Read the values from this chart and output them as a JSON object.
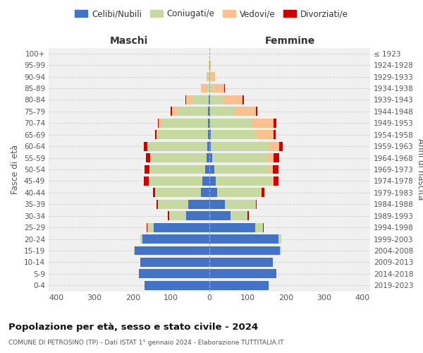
{
  "age_groups": [
    "0-4",
    "5-9",
    "10-14",
    "15-19",
    "20-24",
    "25-29",
    "30-34",
    "35-39",
    "40-44",
    "45-49",
    "50-54",
    "55-59",
    "60-64",
    "65-69",
    "70-74",
    "75-79",
    "80-84",
    "85-89",
    "90-94",
    "95-99",
    "100+"
  ],
  "birth_years": [
    "2019-2023",
    "2014-2018",
    "2009-2013",
    "2004-2008",
    "1999-2003",
    "1994-1998",
    "1989-1993",
    "1984-1988",
    "1979-1983",
    "1974-1978",
    "1969-1973",
    "1964-1968",
    "1959-1963",
    "1954-1958",
    "1949-1953",
    "1944-1948",
    "1939-1943",
    "1934-1938",
    "1929-1933",
    "1924-1928",
    "≤ 1923"
  ],
  "maschi": {
    "celibi": [
      170,
      185,
      180,
      195,
      175,
      145,
      60,
      55,
      22,
      18,
      11,
      8,
      5,
      4,
      3,
      3,
      2,
      0,
      0,
      0,
      0
    ],
    "coniugati": [
      0,
      0,
      0,
      2,
      6,
      18,
      45,
      80,
      120,
      140,
      145,
      145,
      155,
      130,
      120,
      80,
      40,
      8,
      3,
      1,
      0
    ],
    "vedovi": [
      0,
      0,
      0,
      0,
      0,
      0,
      0,
      0,
      0,
      1,
      1,
      2,
      3,
      5,
      10,
      15,
      18,
      15,
      5,
      1,
      0
    ],
    "divorziati": [
      0,
      0,
      0,
      0,
      0,
      1,
      4,
      3,
      5,
      12,
      12,
      10,
      8,
      3,
      2,
      3,
      2,
      0,
      0,
      0,
      0
    ]
  },
  "femmine": {
    "nubili": [
      155,
      175,
      165,
      185,
      180,
      120,
      55,
      40,
      20,
      17,
      12,
      7,
      4,
      3,
      2,
      2,
      1,
      0,
      0,
      0,
      0
    ],
    "coniugate": [
      0,
      0,
      0,
      2,
      8,
      20,
      45,
      80,
      115,
      145,
      145,
      145,
      150,
      120,
      110,
      65,
      35,
      8,
      4,
      1,
      0
    ],
    "vedove": [
      0,
      0,
      0,
      0,
      0,
      0,
      0,
      1,
      2,
      5,
      8,
      15,
      28,
      45,
      55,
      55,
      50,
      30,
      10,
      2,
      0
    ],
    "divorziate": [
      0,
      0,
      0,
      0,
      0,
      1,
      3,
      3,
      6,
      14,
      15,
      15,
      10,
      5,
      8,
      4,
      5,
      2,
      0,
      0,
      0
    ]
  },
  "colors": {
    "celibi": "#4472C4",
    "coniugati": "#C6D9A0",
    "vedovi": "#FAC090",
    "divorziati": "#CC0000"
  },
  "xlim": 420,
  "title": "Popolazione per età, sesso e stato civile - 2024",
  "subtitle": "COMUNE DI PETROSINO (TP) - Dati ISTAT 1° gennaio 2024 - Elaborazione TUTTITALIA.IT",
  "xlabel_left": "Maschi",
  "xlabel_right": "Femmine",
  "ylabel_left": "Fasce di età",
  "ylabel_right": "Anni di nascita",
  "legend_labels": [
    "Celibi/Nubili",
    "Coniugati/e",
    "Vedovi/e",
    "Divorziati/e"
  ],
  "bg_color": "#ffffff",
  "plot_bg_color": "#f0f0f0",
  "grid_color": "#cccccc"
}
